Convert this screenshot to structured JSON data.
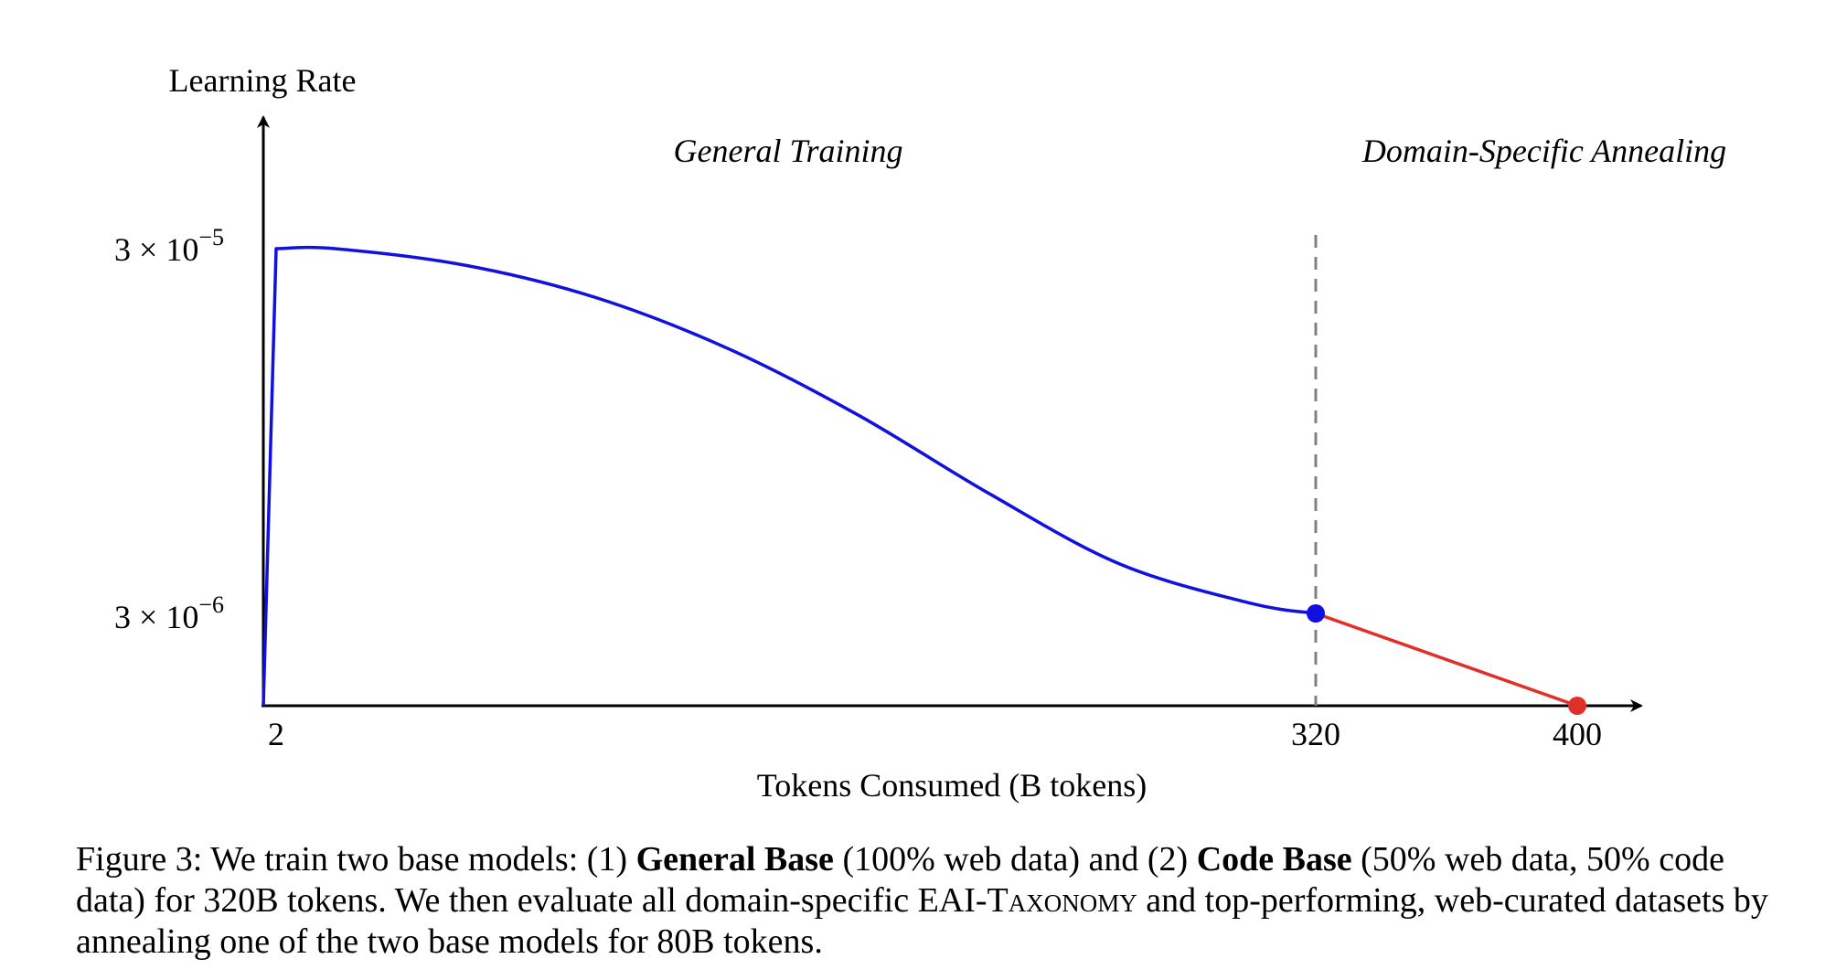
{
  "chart_data": {
    "type": "line",
    "ylabel": "Learning Rate",
    "xlabel": "Tokens Consumed (B tokens)",
    "y_scale": "log",
    "x_ticks": [
      "2",
      "320",
      "400"
    ],
    "y_ticks": [
      {
        "base": "3 × 10",
        "exp": "−5",
        "value": 3e-05
      },
      {
        "base": "3 × 10",
        "exp": "−6",
        "value": 3e-06
      }
    ],
    "regions": [
      {
        "label": "General Training"
      },
      {
        "label": "Domain-Specific Annealing"
      }
    ],
    "boundary_x": 320,
    "series": [
      {
        "phase": "general",
        "color": "#1010e0",
        "x": [
          0,
          2,
          20,
          60,
          100,
          140,
          180,
          220,
          260,
          300,
          320
        ],
        "y": [
          0,
          3e-05,
          3e-05,
          2.7e-05,
          2.2e-05,
          1.6e-05,
          1.05e-05,
          6.4e-06,
          4.1e-06,
          3.2e-06,
          3e-06
        ]
      },
      {
        "phase": "annealing",
        "color": "#e0302a",
        "x": [
          320,
          400
        ],
        "y": [
          3e-06,
          0
        ]
      }
    ],
    "markers": [
      {
        "x": 320,
        "y": 3e-06,
        "color": "#1010e0"
      },
      {
        "x": 400,
        "y": 0,
        "color": "#e0302a"
      }
    ],
    "grid": false
  },
  "caption": {
    "prefix": "Figure 3: We train two base models: (1) ",
    "general_base": "General Base",
    "mid1": " (100% web data) and (2) ",
    "code_base": "Code Base",
    "mid2": " (50% web data, 50% code data) for 320B tokens. We then evaluate all domain-specific ",
    "taxonomy": "EAI-Taxonomy",
    "suffix": " and top-performing, web-curated datasets by annealing one of the two base models for 80B tokens."
  }
}
